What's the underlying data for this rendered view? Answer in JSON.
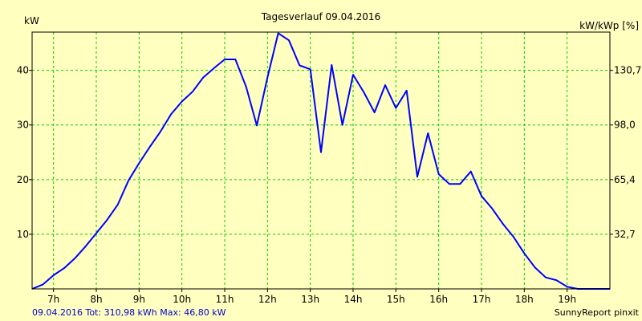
{
  "chart_data": {
    "type": "line",
    "title": "Tagesverlauf 09.04.2016",
    "ylabel_left": "kW",
    "ylabel_right": "kW/kWp [%]",
    "xlim": [
      6.5,
      20.0
    ],
    "ylim": [
      0,
      47
    ],
    "x_ticks": [
      {
        "value": 7,
        "label": "7h"
      },
      {
        "value": 8,
        "label": "8h"
      },
      {
        "value": 9,
        "label": "9h"
      },
      {
        "value": 10,
        "label": "10h"
      },
      {
        "value": 11,
        "label": "11h"
      },
      {
        "value": 12,
        "label": "12h"
      },
      {
        "value": 13,
        "label": "13h"
      },
      {
        "value": 14,
        "label": "14h"
      },
      {
        "value": 15,
        "label": "15h"
      },
      {
        "value": 16,
        "label": "16h"
      },
      {
        "value": 17,
        "label": "17h"
      },
      {
        "value": 18,
        "label": "18h"
      },
      {
        "value": 19,
        "label": "19h"
      }
    ],
    "y_ticks_left": [
      {
        "value": 10,
        "label": "10"
      },
      {
        "value": 20,
        "label": "20"
      },
      {
        "value": 30,
        "label": "30"
      },
      {
        "value": 40,
        "label": "40"
      }
    ],
    "y_ticks_right": [
      {
        "value": 10,
        "label": "32,7"
      },
      {
        "value": 20,
        "label": "65,4"
      },
      {
        "value": 30,
        "label": "98,0"
      },
      {
        "value": 40,
        "label": "130,7"
      }
    ],
    "grid": true,
    "series": [
      {
        "color": "#0000FF",
        "x": [
          6.5,
          6.75,
          7.0,
          7.25,
          7.5,
          7.75,
          8.0,
          8.25,
          8.5,
          8.75,
          9.0,
          9.25,
          9.5,
          9.75,
          10.0,
          10.25,
          10.5,
          10.75,
          11.0,
          11.25,
          11.5,
          11.75,
          12.0,
          12.25,
          12.5,
          12.75,
          13.0,
          13.25,
          13.5,
          13.75,
          14.0,
          14.25,
          14.5,
          14.75,
          15.0,
          15.25,
          15.5,
          15.75,
          16.0,
          16.25,
          16.5,
          16.75,
          17.0,
          17.25,
          17.5,
          17.75,
          18.0,
          18.25,
          18.5,
          18.75,
          19.0,
          19.25,
          19.5,
          19.75,
          20.0
        ],
        "y": [
          0.0,
          0.8,
          2.5,
          3.8,
          5.6,
          7.8,
          10.2,
          12.6,
          15.4,
          19.8,
          23.0,
          26.0,
          28.8,
          32.0,
          34.3,
          36.1,
          38.7,
          40.4,
          42.0,
          42.0,
          37.0,
          29.9,
          38.7,
          46.8,
          45.5,
          40.9,
          40.2,
          25.0,
          41.0,
          30.0,
          39.2,
          36.0,
          32.3,
          37.3,
          33.1,
          36.3,
          20.5,
          28.5,
          21.0,
          19.2,
          19.2,
          21.5,
          17.0,
          14.7,
          11.9,
          9.5,
          6.5,
          3.9,
          2.1,
          1.6,
          0.4,
          0.0,
          0.0,
          0.0,
          0.0
        ]
      }
    ]
  },
  "footer": {
    "left": "09.04.2016 Tot: 310,98 kWh Max: 46,80 kW",
    "right": "SunnyReport pinxit"
  }
}
